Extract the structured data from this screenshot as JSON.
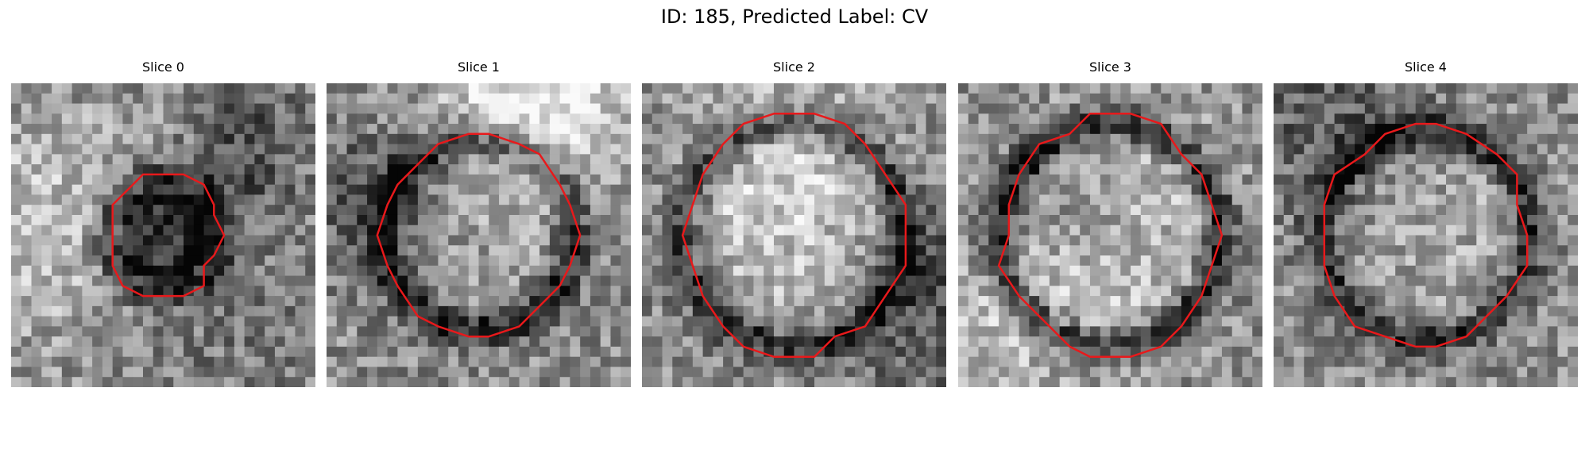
{
  "figure": {
    "title": "ID: 185, Predicted Label: CV"
  },
  "panels": [
    {
      "title": "Slice 0",
      "seed": 11,
      "ring_radius": 0.18,
      "ring_darkness": 0.8,
      "center_brightness": -0.35
    },
    {
      "title": "Slice 1",
      "seed": 23,
      "ring_radius": 0.31,
      "ring_darkness": 0.9,
      "center_brightness": 0.05
    },
    {
      "title": "Slice 2",
      "seed": 37,
      "ring_radius": 0.36,
      "ring_darkness": 0.8,
      "center_brightness": 0.12
    },
    {
      "title": "Slice 3",
      "seed": 51,
      "ring_radius": 0.36,
      "ring_darkness": 0.9,
      "center_brightness": 0.12
    },
    {
      "title": "Slice 4",
      "seed": 67,
      "ring_radius": 0.34,
      "ring_darkness": 0.8,
      "center_brightness": 0.08
    }
  ],
  "style": {
    "contour_color": "#e8191b"
  }
}
